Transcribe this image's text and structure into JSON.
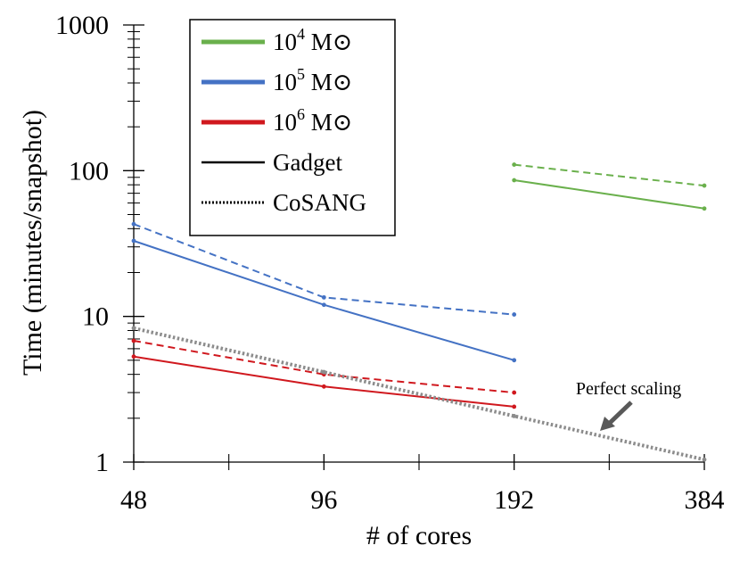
{
  "chart_data": {
    "type": "line",
    "title": "",
    "xlabel": "# of cores",
    "ylabel": "Time (minutes/snapshot)",
    "xscale": "log2",
    "yscale": "log10",
    "x_ticks": [
      48,
      96,
      192,
      384
    ],
    "x_tick_labels": [
      "48",
      "96",
      "192",
      "384"
    ],
    "y_ticks": [
      1,
      10,
      100,
      1000
    ],
    "y_tick_labels": [
      "1",
      "10",
      "100",
      "1000"
    ],
    "ylim": [
      1,
      1000
    ],
    "xlim": [
      48,
      384
    ],
    "grid": false,
    "legend_position": "top-left",
    "series": [
      {
        "mass": "10^4",
        "code": "Gadget",
        "color": "#6ab04c",
        "dash": "solid",
        "x": [
          192,
          384
        ],
        "y": [
          86,
          55
        ]
      },
      {
        "mass": "10^4",
        "code": "CoSANG",
        "color": "#6ab04c",
        "dash": "dashed",
        "x": [
          192,
          384
        ],
        "y": [
          110,
          79
        ]
      },
      {
        "mass": "10^5",
        "code": "Gadget",
        "color": "#4472c4",
        "dash": "solid",
        "x": [
          48,
          96,
          192
        ],
        "y": [
          33,
          12,
          5
        ]
      },
      {
        "mass": "10^5",
        "code": "CoSANG",
        "color": "#4472c4",
        "dash": "dashed",
        "x": [
          48,
          96,
          192
        ],
        "y": [
          43,
          13.5,
          10.3
        ]
      },
      {
        "mass": "10^6",
        "code": "Gadget",
        "color": "#d0181e",
        "dash": "solid",
        "x": [
          48,
          96,
          192
        ],
        "y": [
          5.3,
          3.3,
          2.4
        ]
      },
      {
        "mass": "10^6",
        "code": "CoSANG",
        "color": "#d0181e",
        "dash": "dashed",
        "x": [
          48,
          96,
          192
        ],
        "y": [
          6.8,
          4.0,
          3.0
        ]
      },
      {
        "name": "Perfect scaling",
        "color": "#8c8c8c",
        "dash": "dotted",
        "x": [
          48,
          96,
          192,
          384
        ],
        "y": [
          8.3,
          4.15,
          2.07,
          1.04
        ]
      }
    ],
    "legend": [
      {
        "base": "10",
        "exp": "4",
        "unit": "M⊙",
        "color": "#6ab04c",
        "style": "thick"
      },
      {
        "base": "10",
        "exp": "5",
        "unit": "M⊙",
        "color": "#4472c4",
        "style": "thick"
      },
      {
        "base": "10",
        "exp": "6",
        "unit": "M⊙",
        "color": "#d0181e",
        "style": "thick"
      },
      {
        "label": "Gadget",
        "color": "#000000",
        "style": "solid"
      },
      {
        "label": "CoSANG",
        "color": "#000000",
        "style": "dotted"
      }
    ],
    "annotation": {
      "text": "Perfect scaling",
      "arrow_color": "#595959"
    }
  }
}
